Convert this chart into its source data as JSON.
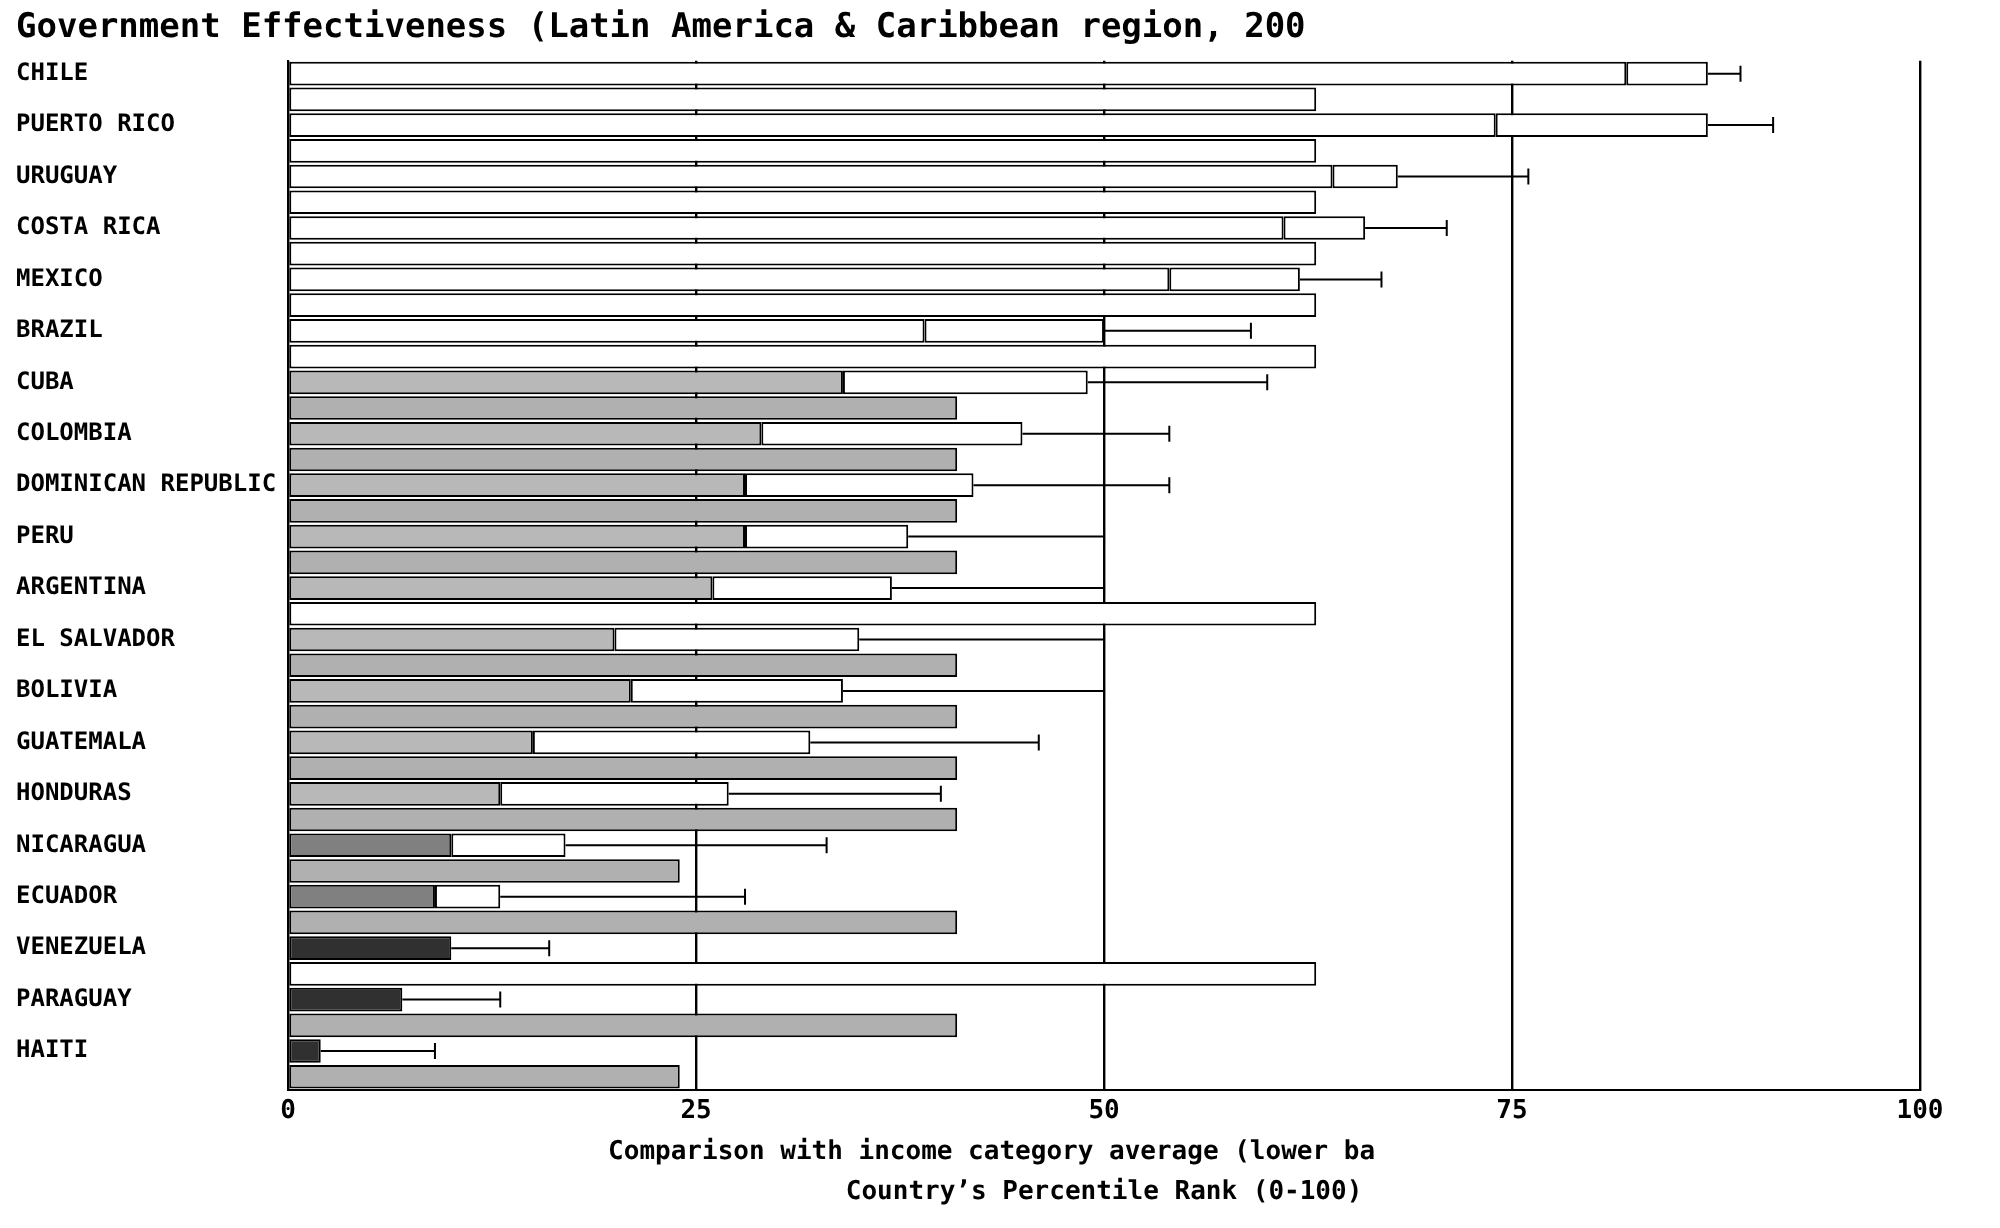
{
  "chart_data": {
    "type": "bar",
    "orientation": "horizontal",
    "stacked": true,
    "title": "Government Effectiveness (Latin America & Caribbean region, 200",
    "categories": [
      "CHILE",
      null,
      "PUERTO RICO",
      null,
      "URUGUAY",
      null,
      "COSTA RICA",
      null,
      "MEXICO",
      null,
      "BRAZIL",
      null,
      "CUBA",
      null,
      "COLOMBIA",
      null,
      "DOMINICAN REPUBLIC",
      null,
      "PERU",
      null,
      "ARGENTINA",
      null,
      "EL SALVADOR",
      null,
      "BOLIVIA",
      null,
      "GUATEMALA",
      null,
      "HONDURAS",
      null,
      "NICARAGUA",
      null,
      "ECUADOR",
      null,
      "VENEZUELA",
      null,
      "PARAGUAY",
      null,
      "HAITI",
      null
    ],
    "series": [
      {
        "values": [
          82,
          null,
          74,
          null,
          64,
          null,
          61,
          null,
          54,
          null,
          39,
          null,
          34,
          null,
          29,
          null,
          28,
          null,
          28,
          null,
          26,
          null,
          20,
          null,
          21,
          null,
          15,
          null,
          13,
          null,
          10,
          null,
          9,
          null,
          10,
          null,
          7,
          null,
          2,
          null
        ],
        "colors": [
          "#ffffff",
          "#ffffff",
          "#ffffff",
          "#ffffff",
          "#ffffff",
          "#ffffff",
          "#ffffff",
          "#ffffff",
          "#ffffff",
          "#ffffff",
          "#ffffff",
          "#ffffff",
          "#b8b8b8",
          "#b8b8b8",
          "#b8b8b8",
          "#b8b8b8",
          "#b8b8b8",
          "#b8b8b8",
          "#b8b8b8",
          "#b8b8b8",
          "#b8b8b8",
          "#b8b8b8",
          "#b8b8b8",
          "#b8b8b8",
          "#b8b8b8",
          "#b8b8b8",
          "#b8b8b8",
          "#b8b8b8",
          "#b8b8b8",
          "#b8b8b8",
          "#808080",
          "#808080",
          "#808080",
          "#808080",
          "#303030",
          "#303030",
          "#303030",
          "#303030",
          "#303030",
          "#303030"
        ],
        "errors": [
          null,
          null,
          null,
          null,
          null,
          null,
          null,
          null,
          null,
          null,
          null,
          null,
          null,
          null,
          null,
          null,
          null,
          null,
          null,
          null,
          null,
          null,
          null,
          null,
          null,
          null,
          null,
          null,
          null,
          null,
          null,
          null,
          null,
          null,
          [
            10,
            16
          ],
          null,
          [
            7,
            13
          ],
          null,
          [
            2,
            9
          ],
          null
        ]
      },
      {
        "values": [
          5,
          null,
          13,
          null,
          4,
          null,
          5,
          null,
          8,
          null,
          11,
          null,
          15,
          null,
          16,
          null,
          14,
          null,
          10,
          null,
          11,
          null,
          15,
          null,
          13,
          null,
          17,
          null,
          14,
          null,
          7,
          null,
          4,
          null,
          null,
          null,
          null,
          null,
          null,
          null
        ],
        "color": "#ffffff",
        "errors": [
          [
            87,
            89
          ],
          null,
          [
            87,
            91
          ],
          null,
          [
            68,
            76
          ],
          null,
          [
            66,
            71
          ],
          null,
          [
            62,
            67
          ],
          null,
          [
            50,
            59
          ],
          null,
          [
            49,
            60
          ],
          null,
          [
            45,
            54
          ],
          null,
          [
            42,
            54
          ],
          null,
          [
            38,
            50
          ],
          null,
          [
            37,
            50
          ],
          null,
          [
            35,
            50
          ],
          null,
          [
            34,
            50
          ],
          null,
          [
            32,
            46
          ],
          null,
          [
            27,
            40
          ],
          null,
          [
            17,
            33
          ],
          null,
          [
            13,
            28
          ],
          null,
          null,
          null,
          null,
          null,
          null,
          null
        ]
      },
      {
        "values": [
          null,
          63,
          null,
          63,
          null,
          63,
          null,
          63,
          null,
          63,
          null,
          63,
          null,
          41,
          null,
          41,
          null,
          41,
          null,
          41,
          null,
          63,
          null,
          41,
          null,
          41,
          null,
          41,
          null,
          41,
          null,
          24,
          null,
          41,
          null,
          63,
          null,
          41,
          null,
          24
        ],
        "colors": [
          "#ffffff",
          "#ffffff",
          "#ffffff",
          "#ffffff",
          "#ffffff",
          "#ffffff",
          "#ffffff",
          "#ffffff",
          "#ffffff",
          "#ffffff",
          "#ffffff",
          "#ffffff",
          "#b0b0b0",
          "#b0b0b0",
          "#b0b0b0",
          "#b0b0b0",
          "#b0b0b0",
          "#b0b0b0",
          "#b0b0b0",
          "#b0b0b0",
          "#ffffff",
          "#ffffff",
          "#b0b0b0",
          "#b0b0b0",
          "#b0b0b0",
          "#b0b0b0",
          "#b0b0b0",
          "#b0b0b0",
          "#b0b0b0",
          "#b0b0b0",
          "#b0b0b0",
          "#b0b0b0",
          "#b0b0b0",
          "#b0b0b0",
          "#ffffff",
          "#ffffff",
          "#b0b0b0",
          "#b0b0b0",
          "#b0b0b0",
          "#b0b0b0"
        ]
      }
    ],
    "xlim": [
      0,
      100
    ],
    "xticks": [
      0,
      25,
      50,
      75,
      100
    ],
    "grid": "x",
    "legend": false,
    "xlabel": "Country’s Percentile Rank (0-100)",
    "annotations": [
      "Comparison with income category average (lower ba"
    ]
  }
}
